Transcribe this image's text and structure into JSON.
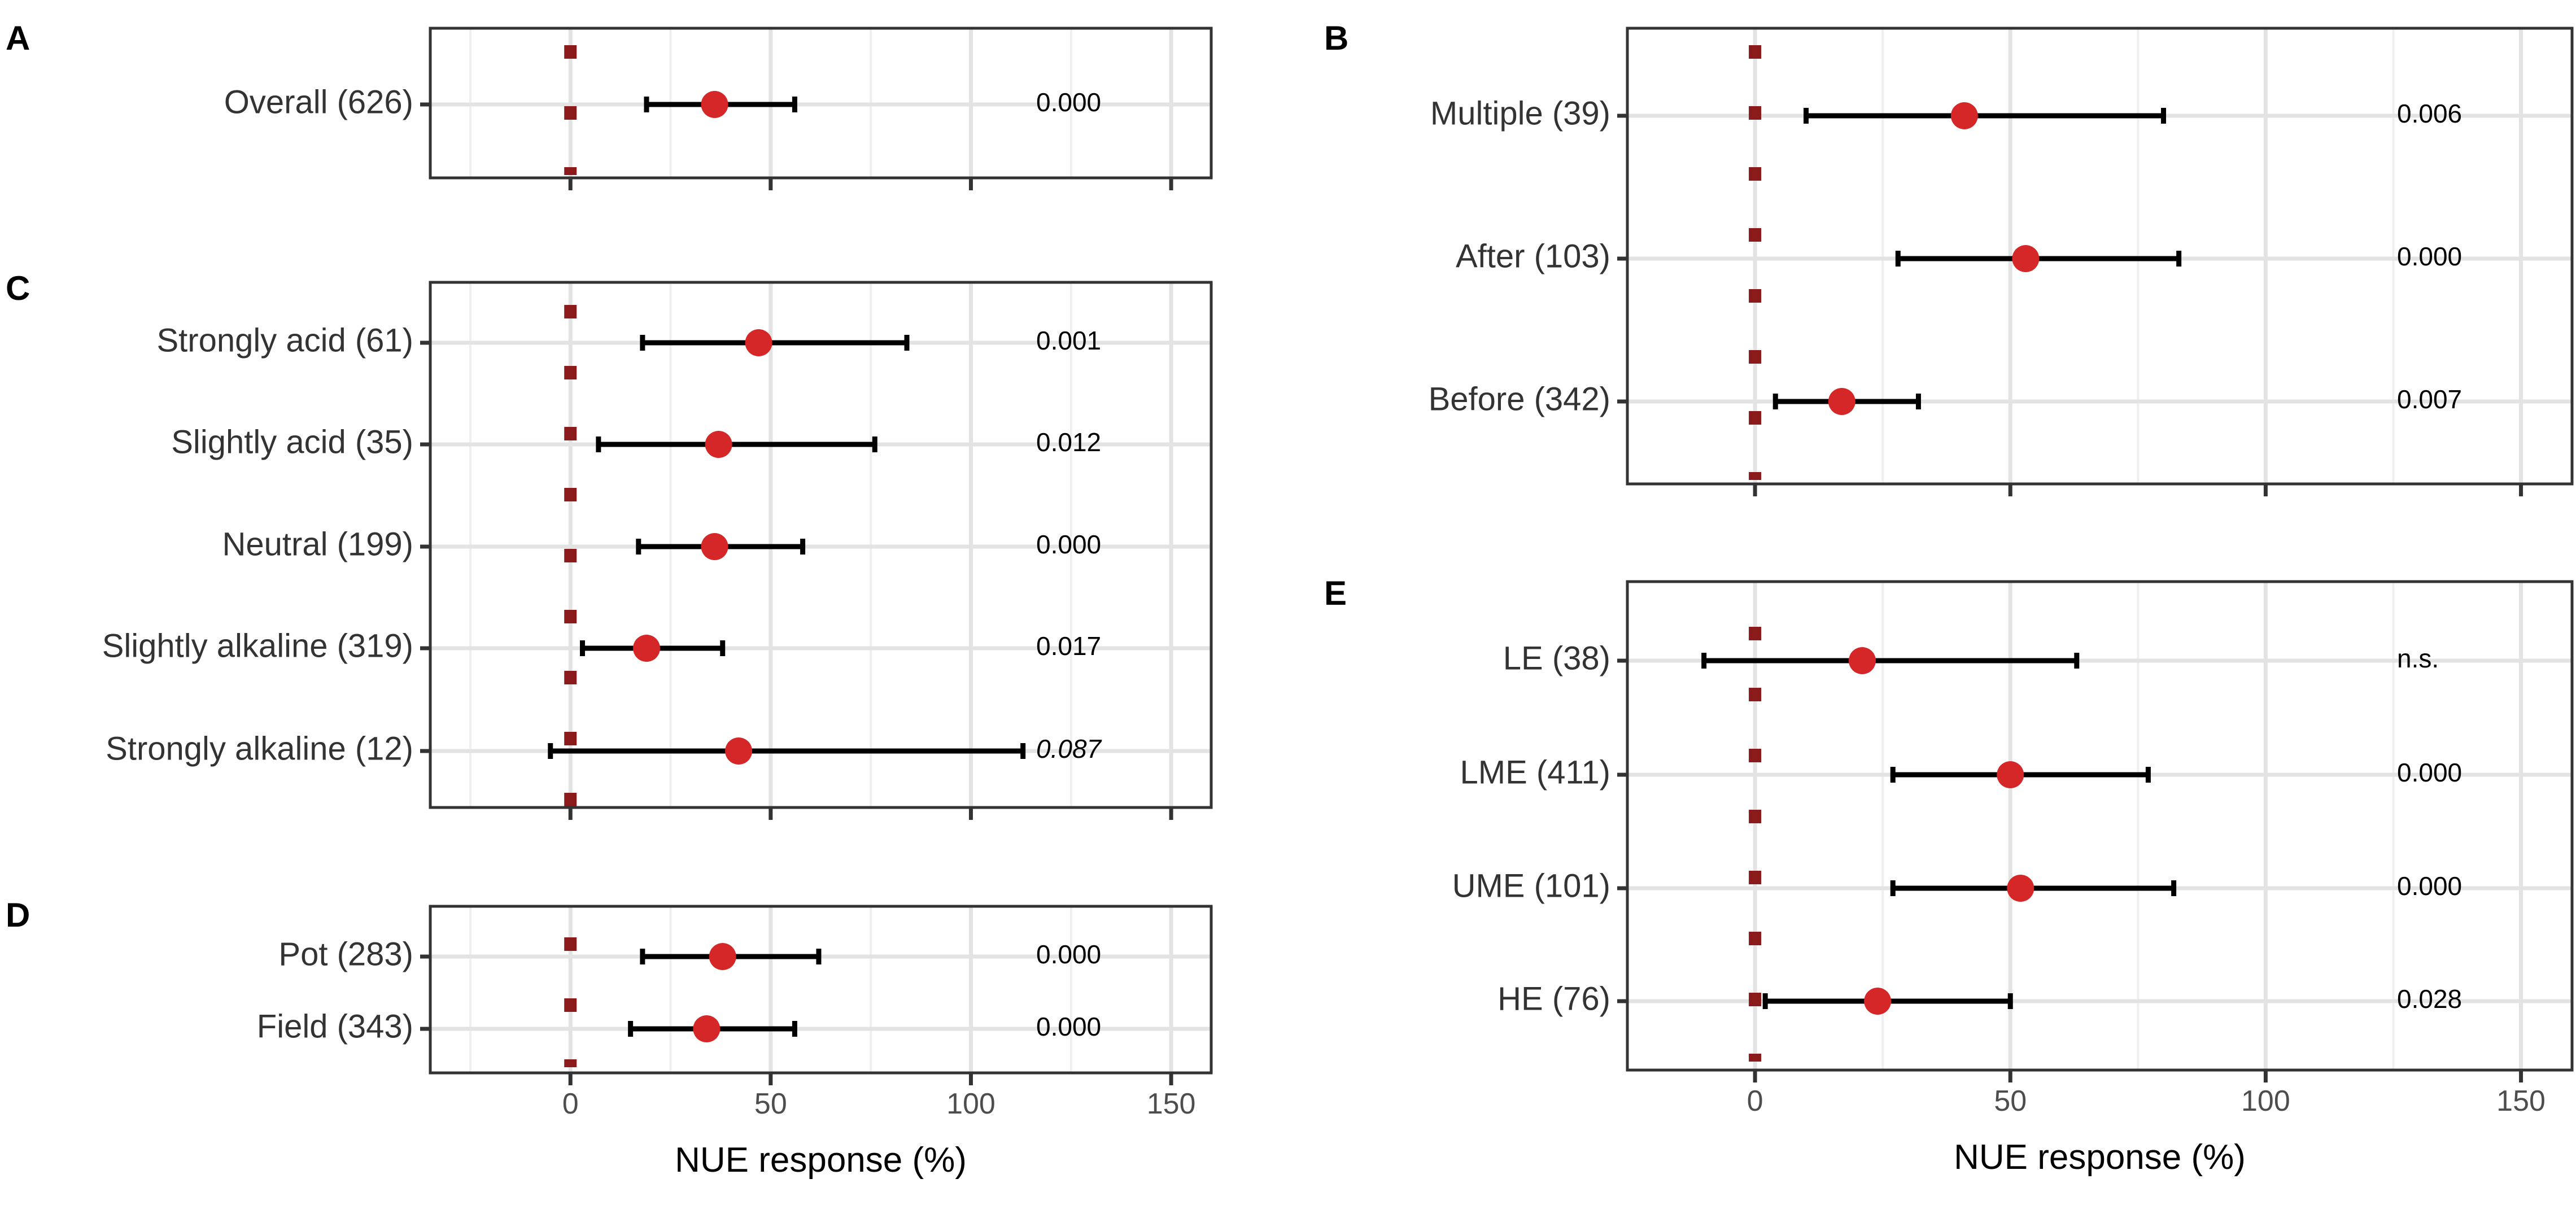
{
  "chart_data": [
    {
      "panel": "A",
      "type": "forest",
      "xlim": [
        -35,
        160
      ],
      "xticks": [
        0,
        50,
        100,
        150
      ],
      "show_x_tick_labels": false,
      "xlabel": "",
      "reference_line": 0,
      "rows": [
        {
          "label": "Overall (626)",
          "mean": 36,
          "lower": 19,
          "upper": 56,
          "p": "0.000",
          "italic": false
        }
      ]
    },
    {
      "panel": "C",
      "type": "forest",
      "xlim": [
        -35,
        160
      ],
      "xticks": [
        0,
        50,
        100,
        150
      ],
      "show_x_tick_labels": false,
      "xlabel": "",
      "reference_line": 0,
      "rows": [
        {
          "label": "Strongly acid (61)",
          "mean": 47,
          "lower": 18,
          "upper": 84,
          "p": "0.001",
          "italic": false
        },
        {
          "label": "Slightly acid (35)",
          "mean": 37,
          "lower": 7,
          "upper": 76,
          "p": "0.012",
          "italic": false
        },
        {
          "label": "Neutral (199)",
          "mean": 36,
          "lower": 17,
          "upper": 58,
          "p": "0.000",
          "italic": false
        },
        {
          "label": "Slightly alkaline (319)",
          "mean": 19,
          "lower": 3,
          "upper": 38,
          "p": "0.017",
          "italic": false
        },
        {
          "label": "Strongly alkaline (12)",
          "mean": 42,
          "lower": -5,
          "upper": 113,
          "p": "0.087",
          "italic": true
        }
      ]
    },
    {
      "panel": "D",
      "type": "forest",
      "xlim": [
        -35,
        160
      ],
      "xticks": [
        0,
        50,
        100,
        150
      ],
      "show_x_tick_labels": true,
      "xlabel": "NUE response (%)",
      "reference_line": 0,
      "rows": [
        {
          "label": "Pot (283)",
          "mean": 38,
          "lower": 18,
          "upper": 62,
          "p": "0.000",
          "italic": false
        },
        {
          "label": "Field (343)",
          "mean": 34,
          "lower": 15,
          "upper": 56,
          "p": "0.000",
          "italic": false
        }
      ]
    },
    {
      "panel": "B",
      "type": "forest",
      "xlim": [
        -25,
        160
      ],
      "xticks": [
        0,
        50,
        100,
        150
      ],
      "show_x_tick_labels": false,
      "xlabel": "",
      "reference_line": 0,
      "rows": [
        {
          "label": "Multiple (39)",
          "mean": 41,
          "lower": 10,
          "upper": 80,
          "p": "0.006",
          "italic": false
        },
        {
          "label": "After (103)",
          "mean": 53,
          "lower": 28,
          "upper": 83,
          "p": "0.000",
          "italic": false
        },
        {
          "label": "Before (342)",
          "mean": 17,
          "lower": 4,
          "upper": 32,
          "p": "0.007",
          "italic": false
        }
      ]
    },
    {
      "panel": "E",
      "type": "forest",
      "xlim": [
        -25,
        160
      ],
      "xticks": [
        0,
        50,
        100,
        150
      ],
      "show_x_tick_labels": true,
      "xlabel": "NUE response (%)",
      "reference_line": 0,
      "rows": [
        {
          "label": "LE (38)",
          "mean": 21,
          "lower": -10,
          "upper": 63,
          "p": "n.s.",
          "italic": false
        },
        {
          "label": "LME (411)",
          "mean": 50,
          "lower": 27,
          "upper": 77,
          "p": "0.000",
          "italic": false
        },
        {
          "label": "UME (101)",
          "mean": 52,
          "lower": 27,
          "upper": 82,
          "p": "0.000",
          "italic": false
        },
        {
          "label": "HE (76)",
          "mean": 24,
          "lower": 2,
          "upper": 50,
          "p": "0.028",
          "italic": false
        }
      ]
    }
  ]
}
